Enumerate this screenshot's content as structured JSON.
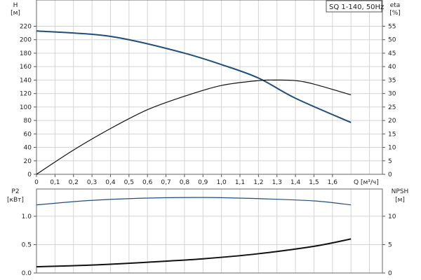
{
  "chart_data": [
    {
      "type": "line",
      "legend": "SQ 1-140, 50Hz",
      "xlabel": "Q [м³/ч]",
      "x_ticks": [
        "0",
        "0,1",
        "0,2",
        "0,3",
        "0,4",
        "0,5",
        "0,6",
        "0,7",
        "0,8",
        "0,9",
        "1,0",
        "1,1",
        "1,2",
        "1,3",
        "1,4",
        "1,5",
        "1,6"
      ],
      "xlim": [
        0,
        1.87
      ],
      "grid": true,
      "left_axis": {
        "label": "H",
        "unit": "[м]",
        "ticks": [
          0,
          20,
          40,
          60,
          80,
          100,
          120,
          140,
          160,
          180,
          200,
          220
        ],
        "ylim": [
          0,
          259
        ]
      },
      "right_axis": {
        "label": "eta",
        "unit": "[%]",
        "ticks": [
          0,
          5,
          10,
          15,
          20,
          25,
          30,
          35,
          40,
          45,
          50,
          55
        ],
        "ylim": [
          0,
          64.75
        ]
      },
      "series": [
        {
          "axis": "left",
          "color": "#1f4e7a",
          "x": [
            0,
            0.3,
            0.5,
            0.8,
            1.0,
            1.2,
            1.4,
            1.7
          ],
          "y": [
            213,
            208,
            200,
            180,
            163,
            143,
            113,
            77
          ]
        },
        {
          "axis": "right",
          "color": "#111111",
          "x": [
            0,
            0.2,
            0.4,
            0.6,
            0.8,
            1.0,
            1.2,
            1.3,
            1.4,
            1.5,
            1.7
          ],
          "y": [
            0,
            9,
            17,
            24,
            29,
            33,
            34.8,
            35,
            34.8,
            33.5,
            29.5
          ]
        }
      ]
    },
    {
      "type": "line",
      "xlim": [
        0,
        1.87
      ],
      "grid": true,
      "left_axis": {
        "label": "P2",
        "unit": "[кВт]",
        "ticks": [
          "0.0",
          "0.5",
          "1.0"
        ],
        "ylim": [
          0,
          1.48
        ]
      },
      "right_axis": {
        "label": "NPSH",
        "unit": "[м]",
        "ticks": [
          "0",
          "5",
          "10"
        ],
        "ylim": [
          0,
          14.8
        ]
      },
      "series": [
        {
          "axis": "left",
          "color": "#1f4e7a",
          "x": [
            0,
            0.3,
            0.6,
            0.9,
            1.2,
            1.5,
            1.7
          ],
          "y": [
            1.2,
            1.28,
            1.32,
            1.33,
            1.31,
            1.27,
            1.2
          ]
        },
        {
          "axis": "right",
          "color": "#111111",
          "x": [
            0,
            0.3,
            0.6,
            0.9,
            1.2,
            1.5,
            1.7
          ],
          "y": [
            1.1,
            1.4,
            1.9,
            2.5,
            3.4,
            4.7,
            6.0
          ]
        }
      ]
    }
  ]
}
